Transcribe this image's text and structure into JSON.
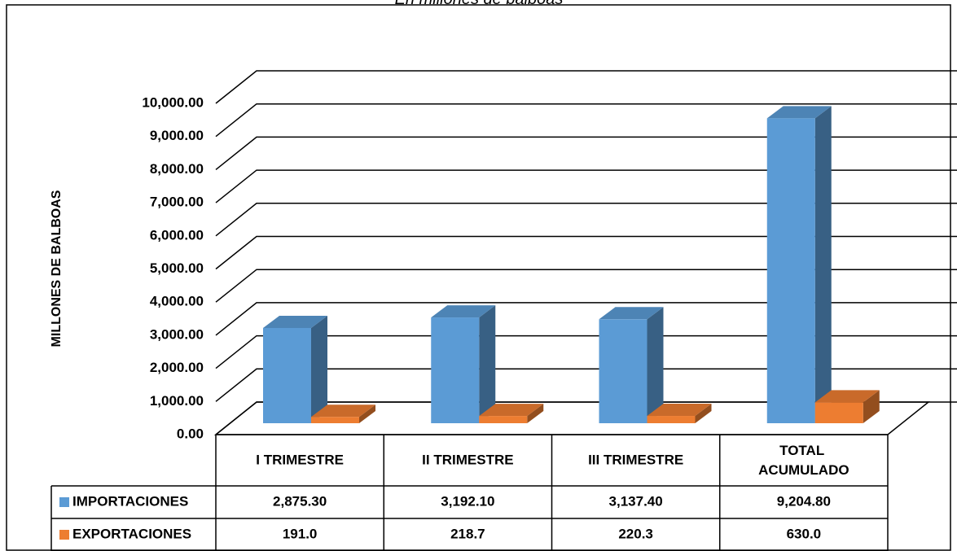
{
  "chart_data": {
    "type": "bar3d",
    "subtitle": "En millones de balboas",
    "ylabel": "MILLONES DE BALBOAS",
    "categories": [
      "I TRIMESTRE",
      "II TRIMESTRE",
      "III TRIMESTRE",
      "TOTAL ACUMULADO"
    ],
    "series": [
      {
        "name": "IMPORTACIONES",
        "color": "#5b9bd5",
        "values": [
          2875.3,
          3192.1,
          3137.4,
          9204.8
        ],
        "value_labels": [
          "2,875.30",
          "3,192.10",
          "3,137.40",
          "9,204.80"
        ]
      },
      {
        "name": "EXPORTACIONES",
        "color": "#ed7d31",
        "values": [
          191.0,
          218.7,
          220.3,
          630.0
        ],
        "value_labels": [
          "191.0",
          "218.7",
          "220.3",
          "630.0"
        ]
      }
    ],
    "ylim": [
      0,
      10000
    ],
    "yticks": [
      {
        "value": 0,
        "label": "0.00"
      },
      {
        "value": 1000,
        "label": "1,000.00"
      },
      {
        "value": 2000,
        "label": "2,000.00"
      },
      {
        "value": 3000,
        "label": "3,000.00"
      },
      {
        "value": 4000,
        "label": "4,000.00"
      },
      {
        "value": 5000,
        "label": "5,000.00"
      },
      {
        "value": 6000,
        "label": "6,000.00"
      },
      {
        "value": 7000,
        "label": "7,000.00"
      },
      {
        "value": 8000,
        "label": "8,000.00"
      },
      {
        "value": 9000,
        "label": "9,000.00"
      },
      {
        "value": 10000,
        "label": "10,000.00"
      }
    ],
    "grid": true
  }
}
